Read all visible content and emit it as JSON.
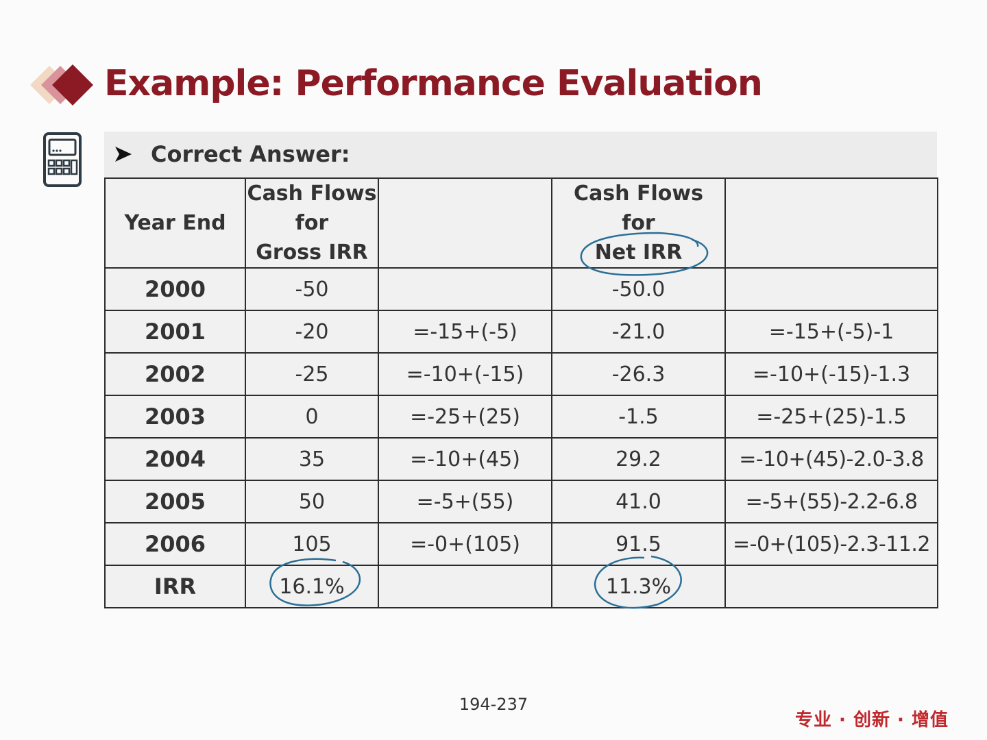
{
  "slide": {
    "title": "Example: Performance Evaluation",
    "answer_label": "Correct Answer:",
    "page_number": "194-237",
    "slogan": "专业 · 创新 · 增值"
  },
  "table": {
    "headers": [
      "Year End",
      "Cash Flows for Gross IRR",
      "",
      "Cash Flows for Net IRR",
      ""
    ],
    "header_lines": {
      "gross": [
        "Cash Flows",
        "for",
        "Gross IRR"
      ],
      "net": [
        "Cash Flows",
        "for",
        "Net IRR"
      ]
    },
    "rows": [
      [
        "2000",
        "-50",
        "",
        "-50.0",
        ""
      ],
      [
        "2001",
        "-20",
        "=-15+(-5)",
        "-21.0",
        "=-15+(-5)-1"
      ],
      [
        "2002",
        "-25",
        "=-10+(-15)",
        "-26.3",
        "=-10+(-15)-1.3"
      ],
      [
        "2003",
        "0",
        "=-25+(25)",
        "-1.5",
        "=-25+(25)-1.5"
      ],
      [
        "2004",
        "35",
        "=-10+(45)",
        "29.2",
        "=-10+(45)-2.0-3.8"
      ],
      [
        "2005",
        "50",
        "=-5+(55)",
        "41.0",
        "=-5+(55)-2.2-6.8"
      ],
      [
        "2006",
        "105",
        "=-0+(105)",
        "91.5",
        "=-0+(105)-2.3-11.2"
      ],
      [
        "IRR",
        "16.1%",
        "",
        "11.3%",
        ""
      ]
    ]
  },
  "colors": {
    "title": "#8b1a24",
    "annotation": "#2a6f97",
    "slogan": "#c0282d",
    "logo": [
      "#f2d9c4",
      "#d9939a",
      "#8b1a24"
    ]
  },
  "icons": [
    "diamond-logo-icon",
    "calculator-icon",
    "arrow-bullet-icon"
  ]
}
